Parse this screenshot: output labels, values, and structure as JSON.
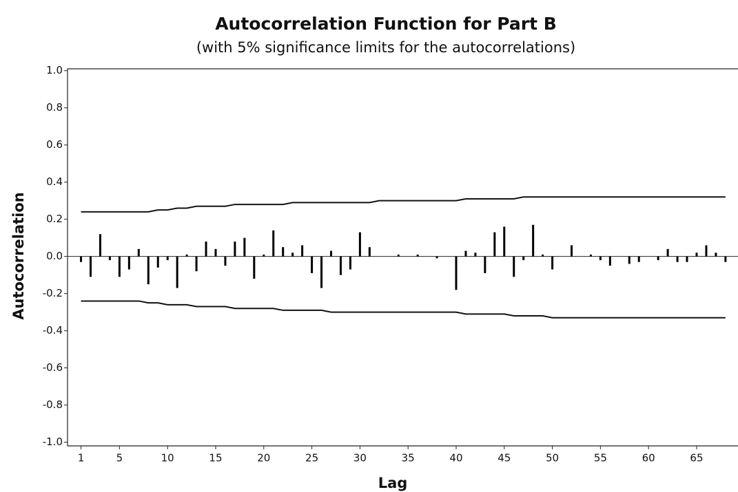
{
  "chart_data": {
    "type": "acf",
    "title": "Autocorrelation Function for Part B",
    "subtitle": "(with 5% significance limits for the autocorrelations)",
    "x_label": "Lag",
    "y_label": "Autocorrelation",
    "color": "#000000",
    "x": [
      1,
      2,
      3,
      4,
      5,
      6,
      7,
      8,
      9,
      10,
      11,
      12,
      13,
      14,
      15,
      16,
      17,
      18,
      19,
      20,
      21,
      22,
      23,
      24,
      25,
      26,
      27,
      28,
      29,
      30,
      31,
      32,
      33,
      34,
      35,
      36,
      37,
      38,
      39,
      40,
      41,
      42,
      43,
      44,
      45,
      46,
      47,
      48,
      49,
      50,
      51,
      52,
      53,
      54,
      55,
      56,
      57,
      58,
      59,
      60,
      61,
      62,
      63,
      64,
      65,
      66,
      67,
      68
    ],
    "values": [
      -0.03,
      -0.11,
      0.12,
      -0.02,
      -0.11,
      -0.07,
      0.04,
      -0.15,
      -0.06,
      -0.02,
      -0.17,
      0.01,
      -0.08,
      0.08,
      0.04,
      -0.05,
      0.08,
      0.1,
      -0.12,
      0.01,
      0.14,
      0.05,
      0.02,
      0.06,
      -0.09,
      -0.17,
      0.03,
      -0.1,
      -0.07,
      0.13,
      0.05,
      0.0,
      0.0,
      0.01,
      0.0,
      0.01,
      0.0,
      -0.01,
      0.0,
      -0.18,
      0.03,
      0.02,
      -0.09,
      0.13,
      0.16,
      -0.11,
      -0.02,
      0.17,
      0.01,
      -0.07,
      0.0,
      0.06,
      0.0,
      0.01,
      -0.02,
      -0.05,
      0.0,
      -0.04,
      -0.03,
      0.0,
      -0.02,
      0.04,
      -0.03,
      -0.03,
      0.02,
      0.06,
      0.02,
      -0.03
    ],
    "upper_limit": [
      0.24,
      0.24,
      0.24,
      0.24,
      0.24,
      0.24,
      0.24,
      0.24,
      0.25,
      0.25,
      0.26,
      0.26,
      0.27,
      0.27,
      0.27,
      0.27,
      0.28,
      0.28,
      0.28,
      0.28,
      0.28,
      0.28,
      0.29,
      0.29,
      0.29,
      0.29,
      0.29,
      0.29,
      0.29,
      0.29,
      0.29,
      0.3,
      0.3,
      0.3,
      0.3,
      0.3,
      0.3,
      0.3,
      0.3,
      0.3,
      0.31,
      0.31,
      0.31,
      0.31,
      0.31,
      0.31,
      0.32,
      0.32,
      0.32,
      0.32,
      0.32,
      0.32,
      0.32,
      0.32,
      0.32,
      0.32,
      0.32,
      0.32,
      0.32,
      0.32,
      0.32,
      0.32,
      0.32,
      0.32,
      0.32,
      0.32,
      0.32,
      0.32
    ],
    "lower_limit": [
      -0.24,
      -0.24,
      -0.24,
      -0.24,
      -0.24,
      -0.24,
      -0.24,
      -0.25,
      -0.25,
      -0.26,
      -0.26,
      -0.26,
      -0.27,
      -0.27,
      -0.27,
      -0.27,
      -0.28,
      -0.28,
      -0.28,
      -0.28,
      -0.28,
      -0.29,
      -0.29,
      -0.29,
      -0.29,
      -0.29,
      -0.3,
      -0.3,
      -0.3,
      -0.3,
      -0.3,
      -0.3,
      -0.3,
      -0.3,
      -0.3,
      -0.3,
      -0.3,
      -0.3,
      -0.3,
      -0.3,
      -0.31,
      -0.31,
      -0.31,
      -0.31,
      -0.31,
      -0.32,
      -0.32,
      -0.32,
      -0.32,
      -0.33,
      -0.33,
      -0.33,
      -0.33,
      -0.33,
      -0.33,
      -0.33,
      -0.33,
      -0.33,
      -0.33,
      -0.33,
      -0.33,
      -0.33,
      -0.33,
      -0.33,
      -0.33,
      -0.33,
      -0.33,
      -0.33
    ],
    "xlim": [
      -0.4,
      69.3
    ],
    "ylim": [
      -1.02,
      1.01
    ],
    "xticks": [
      1,
      5,
      10,
      15,
      20,
      25,
      30,
      35,
      40,
      45,
      50,
      55,
      60,
      65
    ],
    "yticks": [
      {
        "value": 1.0,
        "label": "1.0"
      },
      0.8,
      0.6,
      0.4,
      0.2,
      {
        "value": 0.0,
        "label": "0.0"
      },
      -0.2,
      -0.4,
      -0.6,
      -0.8,
      {
        "value": -1.0,
        "label": "-1.0"
      }
    ]
  }
}
